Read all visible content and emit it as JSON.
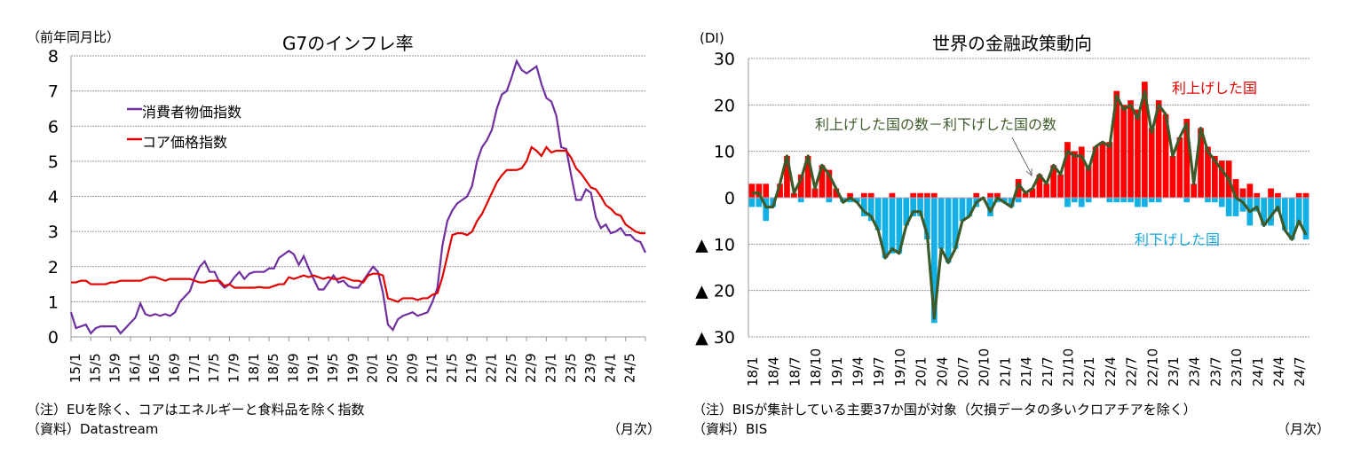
{
  "chart_data": [
    {
      "type": "line",
      "title": "G7のインフレ率",
      "ylabel": "（前年同月比）",
      "xunit": "（月次）",
      "ylim": [
        0,
        8
      ],
      "yticks": [
        0,
        1,
        2,
        3,
        4,
        5,
        6,
        7,
        8
      ],
      "grid": true,
      "legend_placement": "top-left",
      "x_start": "15/1",
      "x_end": "24/9",
      "xtick_labels": [
        "15/1",
        "15/5",
        "15/9",
        "16/1",
        "16/5",
        "16/9",
        "17/1",
        "17/5",
        "17/9",
        "18/1",
        "18/5",
        "18/9",
        "19/1",
        "19/5",
        "19/9",
        "20/1",
        "20/5",
        "20/9",
        "21/1",
        "21/5",
        "21/9",
        "22/1",
        "22/5",
        "22/9",
        "23/1",
        "23/5",
        "23/9",
        "24/1",
        "24/5"
      ],
      "series": [
        {
          "name": "消費者物価指数",
          "color": "#7030a0",
          "values": [
            0.7,
            0.25,
            0.3,
            0.35,
            0.1,
            0.25,
            0.3,
            0.3,
            0.3,
            0.3,
            0.1,
            0.25,
            0.4,
            0.55,
            0.95,
            0.65,
            0.6,
            0.65,
            0.6,
            0.65,
            0.6,
            0.7,
            1.0,
            1.15,
            1.3,
            1.7,
            2.0,
            2.15,
            1.85,
            1.85,
            1.55,
            1.4,
            1.5,
            1.7,
            1.85,
            1.65,
            1.8,
            1.85,
            1.85,
            1.85,
            1.95,
            1.95,
            2.25,
            2.35,
            2.45,
            2.35,
            2.05,
            2.3,
            1.95,
            1.65,
            1.35,
            1.35,
            1.55,
            1.75,
            1.55,
            1.6,
            1.45,
            1.4,
            1.4,
            1.6,
            1.8,
            2.0,
            1.85,
            1.25,
            0.35,
            0.2,
            0.5,
            0.6,
            0.65,
            0.7,
            0.6,
            0.65,
            0.7,
            1.0,
            1.4,
            2.6,
            3.3,
            3.6,
            3.8,
            3.9,
            4.0,
            4.3,
            5.0,
            5.4,
            5.6,
            5.9,
            6.5,
            6.9,
            7.0,
            7.4,
            7.85,
            7.6,
            7.5,
            7.6,
            7.7,
            7.2,
            6.8,
            6.7,
            6.3,
            5.4,
            5.35,
            4.6,
            3.9,
            3.9,
            4.2,
            4.1,
            3.4,
            3.1,
            3.2,
            2.95,
            3.0,
            3.1,
            2.9,
            2.9,
            2.75,
            2.7,
            2.4
          ]
        },
        {
          "name": "コア価格指数",
          "color": "#e00000",
          "values": [
            1.55,
            1.55,
            1.6,
            1.6,
            1.5,
            1.5,
            1.5,
            1.5,
            1.55,
            1.55,
            1.6,
            1.6,
            1.6,
            1.6,
            1.6,
            1.65,
            1.7,
            1.7,
            1.65,
            1.6,
            1.65,
            1.65,
            1.65,
            1.65,
            1.65,
            1.6,
            1.55,
            1.55,
            1.6,
            1.6,
            1.6,
            1.45,
            1.5,
            1.4,
            1.4,
            1.4,
            1.4,
            1.4,
            1.42,
            1.4,
            1.4,
            1.45,
            1.5,
            1.5,
            1.7,
            1.65,
            1.7,
            1.75,
            1.7,
            1.75,
            1.7,
            1.65,
            1.7,
            1.65,
            1.65,
            1.7,
            1.65,
            1.6,
            1.6,
            1.55,
            1.75,
            1.8,
            1.8,
            1.75,
            1.1,
            1.05,
            1.0,
            1.1,
            1.1,
            1.1,
            1.05,
            1.1,
            1.1,
            1.2,
            1.25,
            1.7,
            2.3,
            2.9,
            2.95,
            2.95,
            2.9,
            3.0,
            3.3,
            3.5,
            3.8,
            4.1,
            4.4,
            4.6,
            4.75,
            4.75,
            4.75,
            4.8,
            5.0,
            5.4,
            5.3,
            5.15,
            5.4,
            5.25,
            5.3,
            5.3,
            5.3,
            5.1,
            4.8,
            4.65,
            4.45,
            4.25,
            4.2,
            4.0,
            3.75,
            3.65,
            3.5,
            3.45,
            3.2,
            3.1,
            3.0,
            2.95,
            2.95
          ]
        }
      ],
      "notes": [
        "（注）EUを除く、コアはエネルギーと食料品を除く指数",
        "（資料）Datastream"
      ]
    },
    {
      "type": "bar",
      "title": "世界の金融政策動向",
      "ylabel": "(DI)",
      "xunit": "（月次）",
      "ylim": [
        -30,
        30
      ],
      "yticks": [
        30,
        20,
        10,
        0,
        -10,
        -20,
        -30
      ],
      "ytick_labels": [
        "30",
        "20",
        "10",
        "0",
        "▲ 10",
        "▲ 20",
        "▲ 30"
      ],
      "grid": true,
      "x_start": "18/1",
      "x_end": "24/8",
      "xtick_labels": [
        "18/1",
        "18/4",
        "18/7",
        "18/10",
        "19/1",
        "19/4",
        "19/7",
        "19/10",
        "20/1",
        "20/4",
        "20/7",
        "20/10",
        "21/1",
        "21/4",
        "21/7",
        "21/10",
        "22/1",
        "22/4",
        "22/7",
        "22/10",
        "23/1",
        "23/4",
        "23/7",
        "23/10",
        "24/1",
        "24/4",
        "24/7"
      ],
      "series": [
        {
          "name": "利上げした国",
          "color": "#ff0000",
          "values": [
            3,
            3,
            3,
            0,
            3,
            9,
            1,
            5,
            9,
            2,
            7,
            6,
            2,
            0,
            1,
            0,
            1,
            1,
            0,
            0,
            1,
            0,
            0,
            1,
            1,
            1,
            1,
            0,
            0,
            0,
            0,
            0,
            1,
            0,
            1,
            1,
            0,
            0,
            4,
            1,
            2,
            5,
            3,
            7,
            5,
            12,
            10,
            11,
            7,
            11,
            12,
            12,
            23,
            20,
            21,
            19,
            25,
            15,
            21,
            18,
            9,
            13,
            17,
            3,
            15,
            11,
            9,
            8,
            8,
            4,
            2,
            3,
            1,
            0,
            2,
            1,
            0,
            0,
            1,
            1
          ]
        },
        {
          "name": "利下げした国",
          "color": "#13b0e6",
          "values": [
            2,
            2,
            5,
            2,
            0,
            0,
            0,
            1,
            0,
            0,
            0,
            1,
            0,
            1,
            1,
            1,
            4,
            5,
            7,
            13,
            12,
            12,
            6,
            4,
            4,
            9,
            27,
            11,
            14,
            11,
            5,
            4,
            2,
            0,
            4,
            1,
            1,
            2,
            1,
            0,
            0,
            0,
            0,
            0,
            0,
            2,
            1,
            2,
            1,
            0,
            0,
            1,
            1,
            1,
            1,
            2,
            2,
            1,
            1,
            0,
            0,
            0,
            1,
            0,
            0,
            1,
            1,
            2,
            4,
            4,
            3,
            6,
            3,
            6,
            6,
            3,
            7,
            9,
            6,
            9
          ]
        },
        {
          "name": "利上げした国の数－利下げした国の数",
          "color": "#3d5a2a",
          "values": [
            1,
            1,
            -2,
            -2,
            3,
            9,
            1,
            4,
            9,
            2,
            7,
            5,
            2,
            -1,
            0,
            -1,
            -3,
            -4,
            -7,
            -13,
            -11,
            -12,
            -6,
            -3,
            -3,
            -8,
            -26,
            -11,
            -14,
            -11,
            -5,
            -4,
            -1,
            0,
            -3,
            0,
            -1,
            -2,
            3,
            1,
            2,
            5,
            3,
            7,
            5,
            10,
            9,
            9,
            6,
            11,
            12,
            11,
            22,
            19,
            20,
            17,
            23,
            14,
            20,
            18,
            9,
            13,
            16,
            3,
            15,
            10,
            8,
            6,
            4,
            0,
            -1,
            -3,
            -2,
            -6,
            -4,
            -2,
            -7,
            -9,
            -5,
            -8
          ]
        }
      ],
      "annotations": {
        "hike": "利上げした国",
        "cut": "利下げした国",
        "net": "利上げした国の数－利下げした国の数"
      },
      "notes": [
        "（注）BISが集計している主要37か国が対象（欠損データの多いクロアチアを除く）",
        "（資料）BIS"
      ]
    }
  ]
}
